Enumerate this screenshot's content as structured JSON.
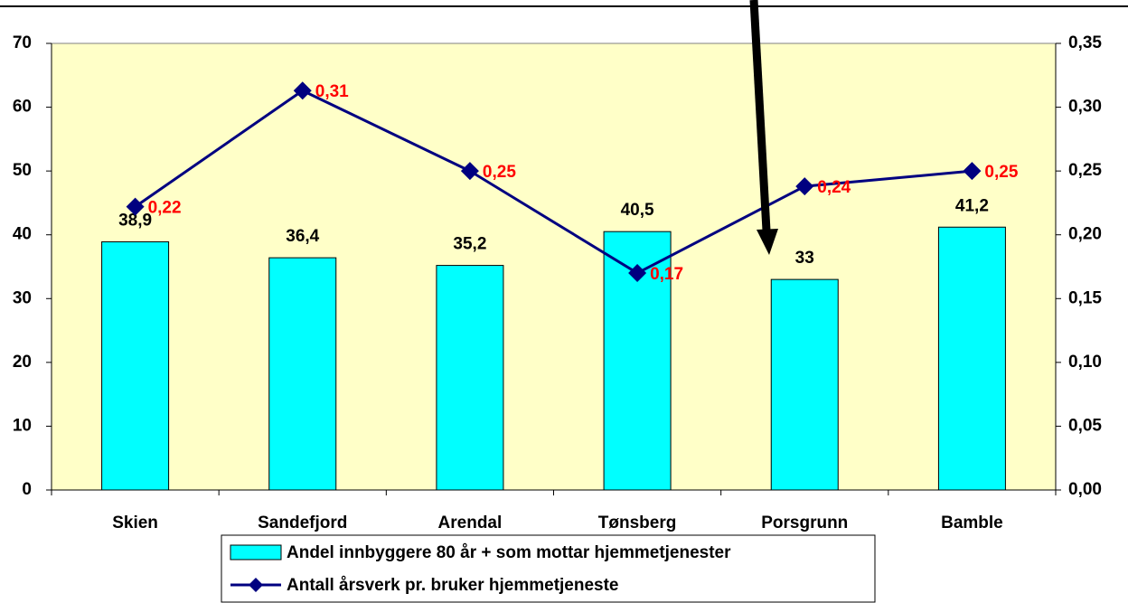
{
  "chart_data": {
    "type": "bar",
    "categories": [
      "Skien",
      "Sandefjord",
      "Arendal",
      "Tønsberg",
      "Porsgrunn",
      "Bamble"
    ],
    "series": [
      {
        "name": "Andel innbyggere 80 år + som mottar hjemmetjenester",
        "type": "bar",
        "color": "#00ffff",
        "values": [
          38.9,
          36.4,
          35.2,
          40.5,
          33,
          41.2
        ],
        "value_labels": [
          "38,9",
          "36,4",
          "35,2",
          "40,5",
          "33",
          "41,2"
        ]
      },
      {
        "name": "Antall årsverk pr. bruker hjemmetjeneste",
        "type": "line",
        "axis": "y2",
        "color": "#000080",
        "values": [
          0.222,
          0.313,
          0.25,
          0.17,
          0.238,
          0.25
        ],
        "value_labels": [
          "0,22",
          "0,31",
          "0,25",
          "0,17",
          "0,24",
          "0,25"
        ],
        "label_color": "#ff0000"
      }
    ],
    "ylim": [
      0,
      70
    ],
    "yticks": [
      0,
      10,
      20,
      30,
      40,
      50,
      60,
      70
    ],
    "y2lim": [
      0,
      0.35
    ],
    "y2ticks": [
      {
        "value": 0,
        "label": "0,00"
      },
      {
        "value": 0.05,
        "label": "0,05"
      },
      {
        "value": 0.1,
        "label": "0,10"
      },
      {
        "value": 0.15,
        "label": "0,15"
      },
      {
        "value": 0.2,
        "label": "0,20"
      },
      {
        "value": 0.25,
        "label": "0,25"
      },
      {
        "value": 0.3,
        "label": "0,30"
      },
      {
        "value": 0.35,
        "label": "0,35"
      }
    ],
    "plot_background": "#ffffc8",
    "legend": "bottom"
  }
}
